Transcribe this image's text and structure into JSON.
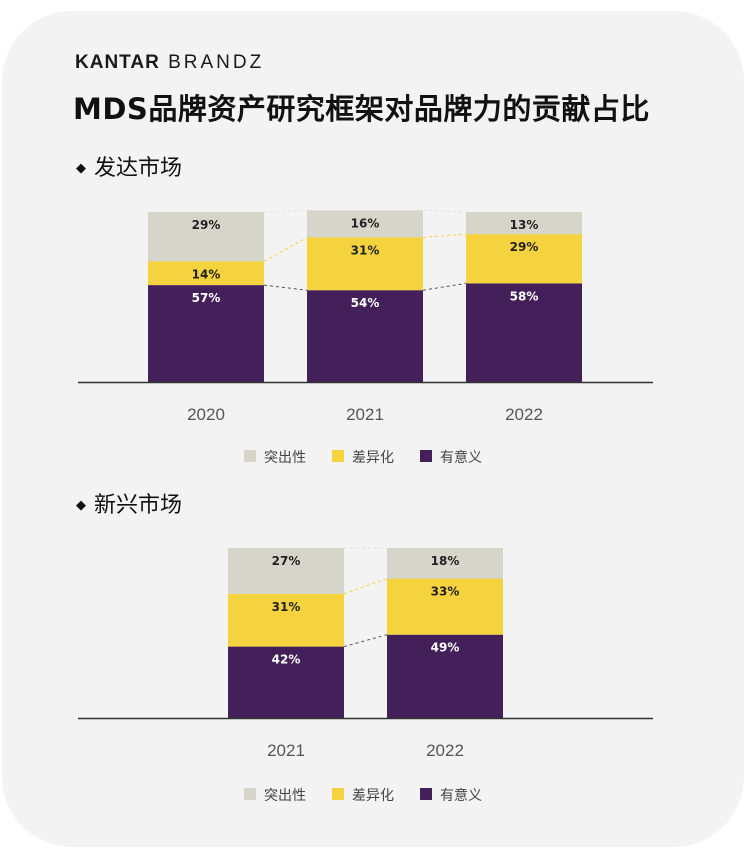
{
  "brand": {
    "part1": "KANTAR",
    "part2": "BRANDZ"
  },
  "title": "MDS品牌资产研究框架对品牌力的贡献占比",
  "colors": {
    "salient": "#d6d5c9",
    "different": "#f4d33f",
    "meaningful": "#43205a",
    "axis": "#333333",
    "connector_gray": "#555555",
    "connector_yellow": "#f4d33f"
  },
  "chart_data": [
    {
      "type": "bar",
      "stacked": true,
      "title": "发达市场",
      "categories": [
        "2020",
        "2021",
        "2022"
      ],
      "series": [
        {
          "name": "有意义",
          "values": [
            57,
            54,
            58
          ]
        },
        {
          "name": "差异化",
          "values": [
            14,
            31,
            29
          ]
        },
        {
          "name": "突出性",
          "values": [
            29,
            16,
            13
          ]
        }
      ],
      "ylim": [
        0,
        100
      ],
      "legend": [
        "突出性",
        "差异化",
        "有意义"
      ]
    },
    {
      "type": "bar",
      "stacked": true,
      "title": "新兴市场",
      "categories": [
        "2021",
        "2022"
      ],
      "series": [
        {
          "name": "有意义",
          "values": [
            42,
            49
          ]
        },
        {
          "name": "差异化",
          "values": [
            31,
            33
          ]
        },
        {
          "name": "突出性",
          "values": [
            27,
            18
          ]
        }
      ],
      "ylim": [
        0,
        100
      ],
      "legend": [
        "突出性",
        "差异化",
        "有意义"
      ]
    }
  ]
}
